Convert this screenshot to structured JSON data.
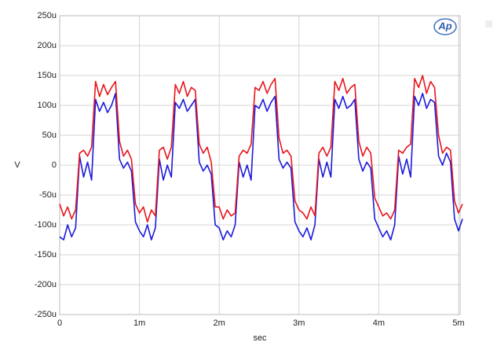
{
  "chart_data": {
    "type": "line",
    "logo": "Ap",
    "xlabel": "sec",
    "ylabel": "V",
    "xlim": [
      0,
      0.00502
    ],
    "ylim": [
      -0.00025,
      0.00025
    ],
    "xticks": [
      0,
      {
        "value": 0.001,
        "label": "1m"
      },
      {
        "value": 0.002,
        "label": "2m"
      },
      {
        "value": 0.003,
        "label": "3m"
      },
      {
        "value": 0.004,
        "label": "4m"
      },
      {
        "value": 0.005,
        "label": "5m"
      }
    ],
    "yticks": [
      {
        "value": -0.00025,
        "label": "-250u"
      },
      {
        "value": -0.0002,
        "label": "-200u"
      },
      {
        "value": -0.00015,
        "label": "-150u"
      },
      {
        "value": -0.0001,
        "label": "-100u"
      },
      {
        "value": -5e-05,
        "label": "-50u"
      },
      0,
      {
        "value": 5e-05,
        "label": "50u"
      },
      {
        "value": 0.0001,
        "label": "100u"
      },
      {
        "value": 0.00015,
        "label": "150u"
      },
      {
        "value": 0.0002,
        "label": "200u"
      },
      {
        "value": 0.00025,
        "label": "250u"
      }
    ],
    "grid": true,
    "x": [
      0,
      5e-05,
      0.0001,
      0.00015,
      0.0002,
      0.00025,
      0.0003,
      0.00035,
      0.0004,
      0.00045,
      0.0005,
      0.00055,
      0.0006,
      0.00065,
      0.0007,
      0.00075,
      0.0008,
      0.00085,
      0.0009,
      0.00095,
      0.001,
      0.00105,
      0.0011,
      0.00115,
      0.0012,
      0.00125,
      0.0013,
      0.00135,
      0.0014,
      0.00145,
      0.0015,
      0.00155,
      0.0016,
      0.00165,
      0.0017,
      0.00175,
      0.0018,
      0.00185,
      0.0019,
      0.00195,
      0.002,
      0.00205,
      0.0021,
      0.00215,
      0.0022,
      0.00225,
      0.0023,
      0.00235,
      0.0024,
      0.00245,
      0.0025,
      0.00255,
      0.0026,
      0.00265,
      0.0027,
      0.00275,
      0.0028,
      0.00285,
      0.0029,
      0.00295,
      0.003,
      0.00305,
      0.0031,
      0.00315,
      0.0032,
      0.00325,
      0.0033,
      0.00335,
      0.0034,
      0.00345,
      0.0035,
      0.00355,
      0.0036,
      0.00365,
      0.0037,
      0.00375,
      0.0038,
      0.00385,
      0.0039,
      0.00395,
      0.004,
      0.00405,
      0.0041,
      0.00415,
      0.0042,
      0.00425,
      0.0043,
      0.00435,
      0.0044,
      0.00445,
      0.0045,
      0.00455,
      0.0046,
      0.00465,
      0.0047,
      0.00475,
      0.0048,
      0.00485,
      0.0049,
      0.00495,
      0.005,
      0.00505
    ],
    "series": [
      {
        "color": "#e8141c",
        "values": [
          -6.5e-05,
          -8.5e-05,
          -7e-05,
          -9e-05,
          -7.5e-05,
          2e-05,
          2.5e-05,
          1.5e-05,
          3e-05,
          0.00014,
          0.000115,
          0.000135,
          0.000118,
          0.00013,
          0.00014,
          4e-05,
          1.5e-05,
          2.5e-05,
          1e-05,
          -6.5e-05,
          -8e-05,
          -7e-05,
          -9.5e-05,
          -7.5e-05,
          -8.5e-05,
          2.5e-05,
          3e-05,
          1e-05,
          3e-05,
          0.000135,
          0.00012,
          0.00014,
          0.000115,
          0.00013,
          0.000125,
          3.5e-05,
          2e-05,
          3e-05,
          5e-06,
          -7e-05,
          -7e-05,
          -9e-05,
          -7.5e-05,
          -8.5e-05,
          -8e-05,
          1.5e-05,
          2.5e-05,
          2e-05,
          3.5e-05,
          0.00013,
          0.000125,
          0.00014,
          0.00012,
          0.000135,
          0.000145,
          4.5e-05,
          2e-05,
          2.5e-05,
          1.5e-05,
          -6e-05,
          -7.5e-05,
          -8e-05,
          -9e-05,
          -7e-05,
          -8.5e-05,
          2e-05,
          3e-05,
          1.5e-05,
          3e-05,
          0.00014,
          0.000125,
          0.000145,
          0.00012,
          0.00013,
          0.000135,
          4e-05,
          1.5e-05,
          3e-05,
          2e-05,
          -5.5e-05,
          -7e-05,
          -8.5e-05,
          -8e-05,
          -9e-05,
          -7.5e-05,
          2.5e-05,
          2e-05,
          3e-05,
          3.5e-05,
          0.000145,
          0.00013,
          0.00015,
          0.00012,
          0.00014,
          0.00013,
          5e-05,
          2e-05,
          3e-05,
          2.5e-05,
          -6e-05,
          -8e-05,
          -6.5e-05
        ]
      },
      {
        "color": "#1a1adc",
        "values": [
          -0.00012,
          -0.000125,
          -0.0001,
          -0.00012,
          -0.000105,
          1.5e-05,
          -2e-05,
          5e-06,
          -2.5e-05,
          0.00011,
          9e-05,
          0.000105,
          8.8e-05,
          0.0001,
          0.00012,
          1e-05,
          -5e-06,
          5e-06,
          -1e-05,
          -9.5e-05,
          -0.00011,
          -0.00012,
          -0.0001,
          -0.000125,
          -0.000105,
          1e-05,
          -2.5e-05,
          0,
          -2e-05,
          0.000105,
          9.5e-05,
          0.00011,
          9e-05,
          0.0001,
          0.00011,
          5e-06,
          -1e-05,
          0,
          -1.5e-05,
          -0.0001,
          -0.000105,
          -0.000125,
          -0.00011,
          -0.00012,
          -0.0001,
          5e-06,
          -2e-05,
          0,
          -2.5e-05,
          0.0001,
          9.5e-05,
          0.00011,
          9e-05,
          0.000105,
          0.000115,
          1e-05,
          -5e-06,
          5e-06,
          -5e-06,
          -9.5e-05,
          -0.00011,
          -0.00012,
          -0.000105,
          -0.000125,
          -0.0001,
          1e-05,
          -2e-05,
          5e-06,
          -2e-05,
          0.00011,
          9.5e-05,
          0.000115,
          9.5e-05,
          0.0001,
          0.00011,
          1e-05,
          -1e-05,
          5e-06,
          -5e-06,
          -9e-05,
          -0.000105,
          -0.00012,
          -0.00011,
          -0.000125,
          -0.0001,
          1.5e-05,
          -1.5e-05,
          1e-05,
          -2e-05,
          0.000115,
          0.0001,
          0.00012,
          9.5e-05,
          0.00011,
          0.000105,
          1.5e-05,
          0,
          2e-05,
          5e-06,
          -9e-05,
          -0.00011,
          -9e-05
        ]
      }
    ]
  }
}
